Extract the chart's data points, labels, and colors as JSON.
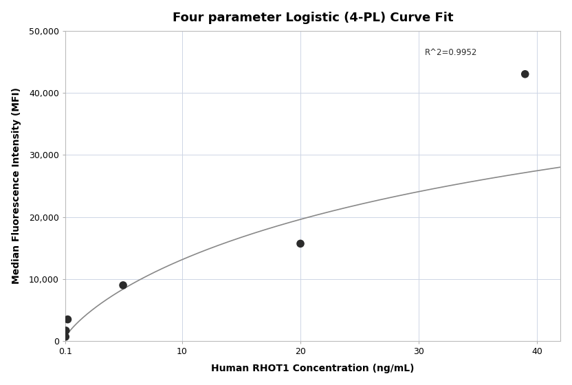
{
  "title": "Four parameter Logistic (4-PL) Curve Fit",
  "xlabel": "Human RHOT1 Concentration (ng/mL)",
  "ylabel": "Median Fluorescence Intensity (MFI)",
  "scatter_x": [
    0.125,
    0.156,
    0.313,
    5.0,
    20.0,
    39.0
  ],
  "scatter_y": [
    700,
    1700,
    3500,
    9000,
    15700,
    43000
  ],
  "scatter_color": "#2b2b2b",
  "scatter_size": 70,
  "curve_color": "#888888",
  "curve_linewidth": 1.2,
  "r2_text": "R^2=0.9952",
  "r2_x": 30.5,
  "r2_y": 46500,
  "xlim": [
    0.1,
    42
  ],
  "ylim": [
    0,
    50000
  ],
  "yticks": [
    0,
    10000,
    20000,
    30000,
    40000,
    50000
  ],
  "ytick_labels": [
    "0",
    "10,000",
    "20,000",
    "30,000",
    "40,000",
    "50,000"
  ],
  "xticks": [
    0.1,
    10,
    20,
    30,
    40
  ],
  "xtick_labels": [
    "0.1",
    "10",
    "20",
    "30",
    "40"
  ],
  "grid_color": "#cdd5e5",
  "background_color": "#ffffff",
  "title_fontsize": 13,
  "axis_label_fontsize": 10,
  "tick_fontsize": 9
}
